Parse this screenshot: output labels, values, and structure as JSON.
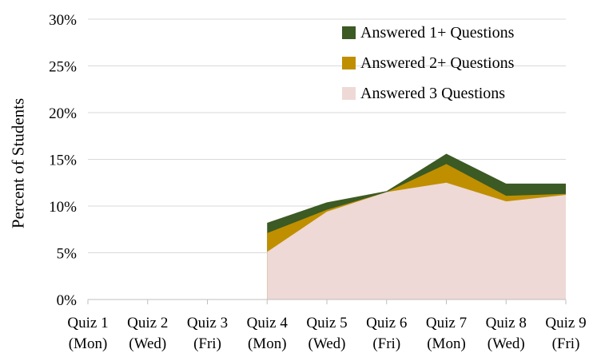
{
  "chart_data": {
    "type": "area",
    "overlapping": true,
    "title": "",
    "ylabel": "Percent of Students",
    "xlabel": "",
    "ylim": [
      0,
      30
    ],
    "ytick_step": 5,
    "ytick_labels": [
      "0%",
      "5%",
      "10%",
      "15%",
      "20%",
      "25%",
      "30%"
    ],
    "categories": [
      {
        "quiz": "Quiz 1",
        "day": "(Mon)"
      },
      {
        "quiz": "Quiz 2",
        "day": "(Wed)"
      },
      {
        "quiz": "Quiz 3",
        "day": "(Fri)"
      },
      {
        "quiz": "Quiz 4",
        "day": "(Mon)"
      },
      {
        "quiz": "Quiz 5",
        "day": "(Wed)"
      },
      {
        "quiz": "Quiz 6",
        "day": "(Fri)"
      },
      {
        "quiz": "Quiz 7",
        "day": "(Mon)"
      },
      {
        "quiz": "Quiz 8",
        "day": "(Wed)"
      },
      {
        "quiz": "Quiz 9",
        "day": "(Fri)"
      }
    ],
    "series": [
      {
        "name": "Answered 1+ Questions",
        "color": "#3C5A24",
        "values": [
          null,
          null,
          null,
          8.2,
          10.4,
          11.6,
          15.6,
          12.4,
          12.4
        ]
      },
      {
        "name": "Answered 2+ Questions",
        "color": "#BF8F00",
        "values": [
          null,
          null,
          null,
          7.1,
          9.6,
          11.5,
          14.5,
          11.1,
          11.3
        ]
      },
      {
        "name": "Answered 3 Questions",
        "color": "#EED9D6",
        "values": [
          null,
          null,
          null,
          5.1,
          9.4,
          11.5,
          12.5,
          10.5,
          11.2
        ]
      }
    ],
    "legend_position": "top-right-inside",
    "grid": true,
    "colors": {
      "gridline": "#D9D9D9",
      "axis_line": "#BFBFBF",
      "text": "#000000",
      "background": "#FFFFFF"
    }
  }
}
